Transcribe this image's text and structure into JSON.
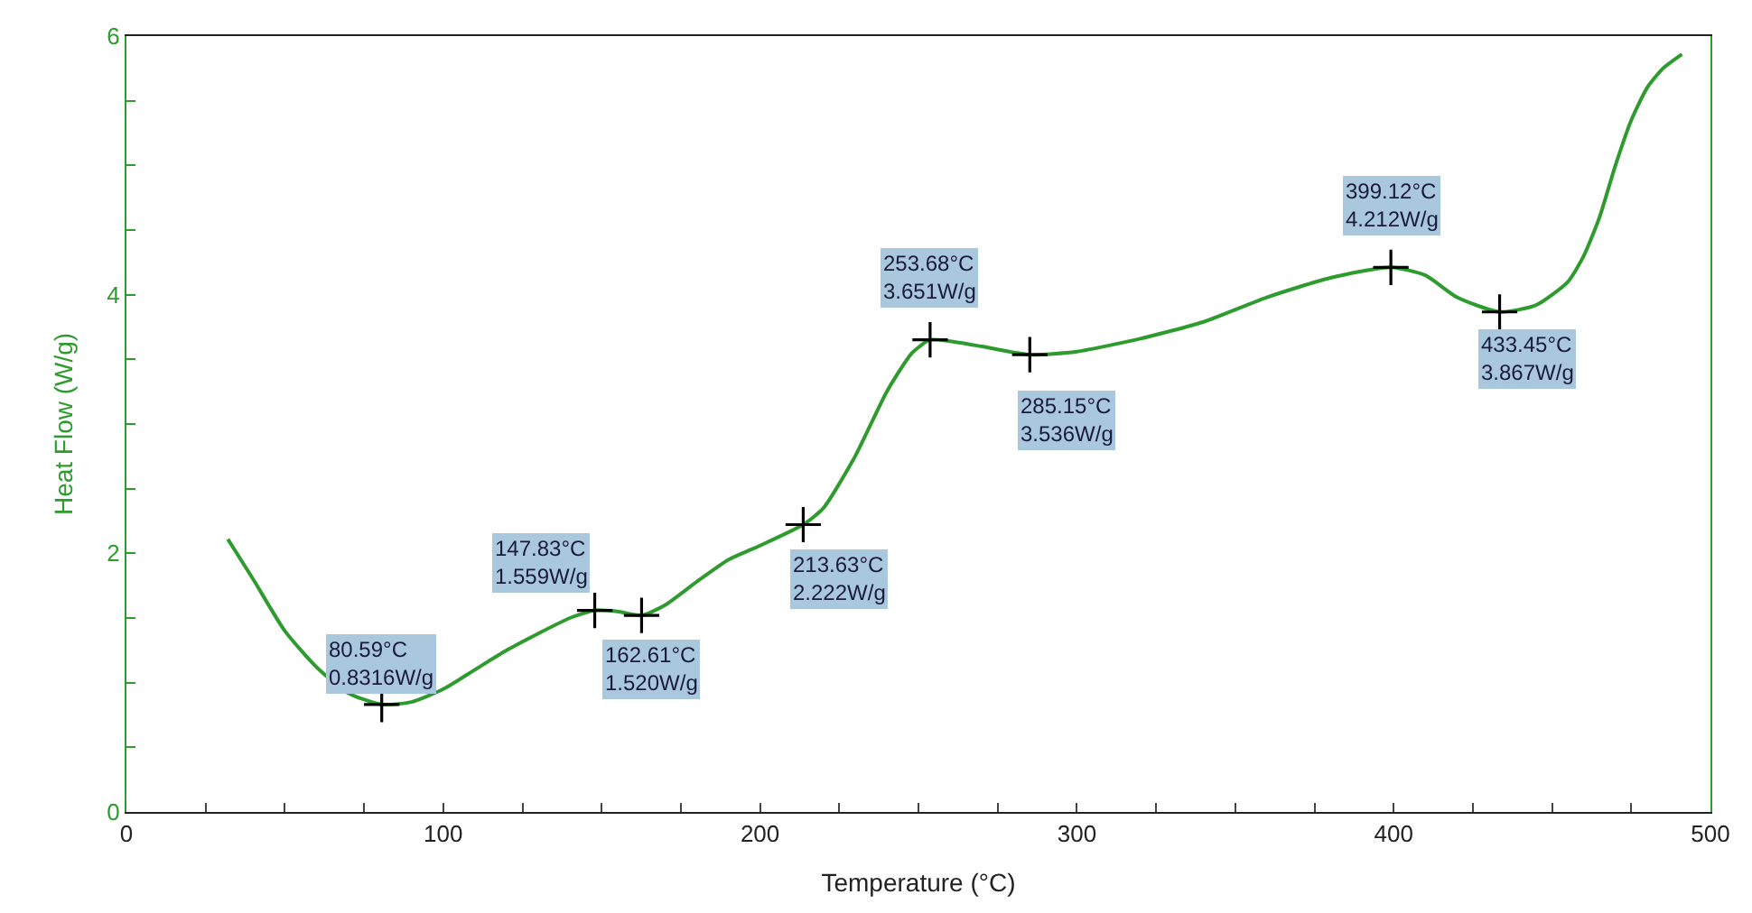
{
  "chart_data": {
    "type": "line",
    "xlabel": "Temperature (°C)",
    "ylabel": "Heat Flow (W/g)",
    "xlim": [
      0,
      500
    ],
    "ylim": [
      0,
      6
    ],
    "xticks": [
      0,
      {
        "value": 25,
        "label": null
      },
      {
        "value": 50,
        "label": null
      },
      {
        "value": 75,
        "label": null
      },
      100,
      {
        "value": 125,
        "label": null
      },
      {
        "value": 150,
        "label": null
      },
      {
        "value": 175,
        "label": null
      },
      200,
      {
        "value": 225,
        "label": null
      },
      {
        "value": 250,
        "label": null
      },
      {
        "value": 275,
        "label": null
      },
      300,
      {
        "value": 325,
        "label": null
      },
      {
        "value": 350,
        "label": null
      },
      {
        "value": 375,
        "label": null
      },
      400,
      {
        "value": 425,
        "label": null
      },
      {
        "value": 450,
        "label": null
      },
      {
        "value": 475,
        "label": null
      },
      500
    ],
    "yticks": [
      0,
      {
        "value": 0.5,
        "label": null
      },
      {
        "value": 1,
        "label": null
      },
      {
        "value": 1.5,
        "label": null
      },
      2,
      {
        "value": 2.5,
        "label": null
      },
      {
        "value": 3,
        "label": null
      },
      {
        "value": 3.5,
        "label": null
      },
      4,
      {
        "value": 4.5,
        "label": null
      },
      {
        "value": 5,
        "label": null
      },
      {
        "value": 5.5,
        "label": null
      },
      6
    ],
    "series": [
      {
        "color": "#2e9b2e",
        "marker": "none",
        "line_style": "solid",
        "x": [
          32,
          40,
          50,
          60,
          70,
          80.59,
          90,
          100,
          110,
          120,
          130,
          140,
          147.83,
          155,
          162.61,
          170,
          180,
          190,
          200,
          213.63,
          220,
          230,
          240,
          248,
          253.68,
          260,
          270,
          285.15,
          300,
          320,
          340,
          360,
          380,
          399.12,
          410,
          420,
          433.45,
          445,
          455,
          460,
          465,
          470,
          475,
          480,
          485,
          491
        ],
        "values": [
          2.11,
          1.8,
          1.4,
          1.12,
          0.92,
          0.8316,
          0.85,
          0.95,
          1.1,
          1.25,
          1.38,
          1.5,
          1.559,
          1.55,
          1.52,
          1.6,
          1.78,
          1.95,
          2.06,
          2.222,
          2.35,
          2.75,
          3.25,
          3.55,
          3.651,
          3.64,
          3.6,
          3.536,
          3.56,
          3.66,
          3.79,
          3.98,
          4.13,
          4.212,
          4.15,
          3.98,
          3.867,
          3.92,
          4.1,
          4.3,
          4.6,
          5.0,
          5.35,
          5.6,
          5.75,
          5.86
        ]
      },
      {
        "color": "#000000",
        "type": "scatter",
        "marker": "cross",
        "x": [
          80.59,
          147.83,
          162.61,
          213.63,
          253.68,
          285.15,
          399.12,
          433.45
        ],
        "values": [
          0.8316,
          1.559,
          1.52,
          2.222,
          3.651,
          3.536,
          4.212,
          3.867
        ]
      }
    ],
    "annotations": [
      {
        "text": "80.59°C\n0.8316W/g",
        "x": 80.59,
        "y": 0.8316
      },
      {
        "text": "147.83°C\n1.559W/g",
        "x": 147.83,
        "y": 1.559
      },
      {
        "text": "162.61°C\n1.520W/g",
        "x": 162.61,
        "y": 1.52
      },
      {
        "text": "213.63°C\n2.222W/g",
        "x": 213.63,
        "y": 2.222
      },
      {
        "text": "253.68°C\n3.651W/g",
        "x": 253.68,
        "y": 3.651
      },
      {
        "text": "285.15°C\n3.536W/g",
        "x": 285.15,
        "y": 3.536
      },
      {
        "text": "399.12°C\n4.212W/g",
        "x": 399.12,
        "y": 4.212
      },
      {
        "text": "433.45°C\n3.867W/g",
        "x": 433.45,
        "y": 3.867
      }
    ]
  }
}
